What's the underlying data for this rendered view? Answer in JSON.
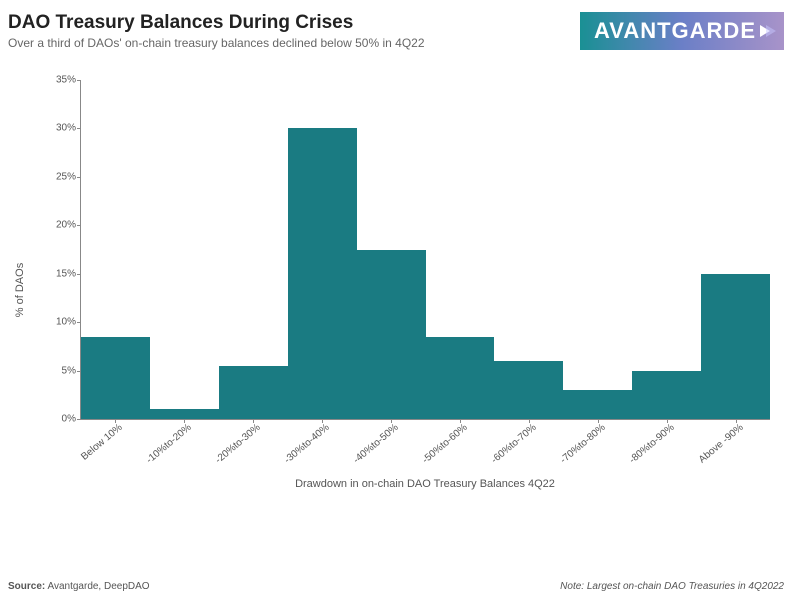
{
  "header": {
    "title": "DAO Treasury Balances During Crises",
    "subtitle": "Over a third of DAOs' on-chain treasury balances declined below 50% in 4Q22",
    "title_fontsize": 19,
    "subtitle_fontsize": 12,
    "logo_text": "AVANTGARDE",
    "logo_fontsize": 22
  },
  "chart": {
    "type": "bar",
    "categories": [
      "Below 10%",
      "-10%to-20%",
      "-20%to-30%",
      "-30%to-40%",
      "-40%to-50%",
      "-50%to-60%",
      "-60%to-70%",
      "-70%to-80%",
      "-80%to-90%",
      "Above -90%"
    ],
    "values": [
      8.5,
      1,
      5.5,
      30,
      17.5,
      8.5,
      6,
      3,
      5,
      15
    ],
    "bar_color": "#1a7b82",
    "bar_width": 1.0,
    "ylim": [
      0,
      35
    ],
    "ytick_step": 5,
    "ytick_suffix": "%",
    "ylabel": "% of DAOs",
    "xlabel": "Drawdown in on-chain DAO Treasury Balances 4Q22",
    "label_fontsize": 11,
    "tick_fontsize": 10,
    "background_color": "#ffffff",
    "axis_color": "#888888"
  },
  "footer": {
    "source_prefix": "Source:",
    "source": "Avantgarde, DeepDAO",
    "note_prefix": "Note:",
    "note": "Largest on-chain DAO Treasuries in 4Q2022",
    "fontsize": 10
  }
}
